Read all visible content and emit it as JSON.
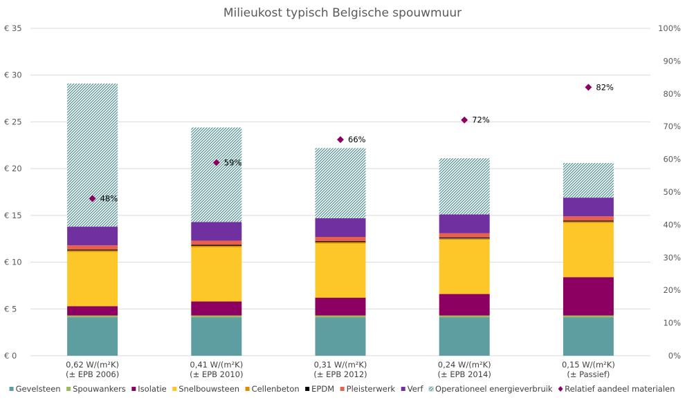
{
  "chart_data": {
    "type": "bar",
    "stacked": true,
    "title": "Milieukost typisch Belgische spouwmuur",
    "categories": [
      [
        "0,62 W/(m²K)",
        "(± EPB 2006)"
      ],
      [
        "0,41 W/(m²K)",
        "(± EPB 2010)"
      ],
      [
        "0,31 W/(m²K)",
        "(± EPB 2012)"
      ],
      [
        "0,24 W/(m²K)",
        "(± EPB 2014)"
      ],
      [
        "0,15 W/(m²K)",
        "(± Passief)"
      ]
    ],
    "y_left": {
      "min": 0,
      "max": 35,
      "step": 5,
      "tick_labels": [
        "€ 0",
        "€ 5",
        "€ 10",
        "€ 15",
        "€ 20",
        "€ 25",
        "€ 30",
        "€ 35"
      ]
    },
    "y_right": {
      "min": 0,
      "max": 100,
      "step": 10,
      "tick_labels": [
        "0%",
        "10%",
        "20%",
        "30%",
        "40%",
        "50%",
        "60%",
        "70%",
        "80%",
        "90%",
        "100%"
      ]
    },
    "grid": true,
    "legend_position": "bottom",
    "series": [
      {
        "name": "Gevelsteen",
        "color": "#5f9ea0",
        "pattern": "solid",
        "values": [
          4.1,
          4.1,
          4.1,
          4.1,
          4.1
        ]
      },
      {
        "name": "Spouwankers",
        "color": "#9bbb59",
        "pattern": "solid",
        "values": [
          0.2,
          0.2,
          0.2,
          0.2,
          0.2
        ]
      },
      {
        "name": "Isolatie",
        "color": "#8b0060",
        "pattern": "solid",
        "values": [
          1.0,
          1.5,
          1.9,
          2.3,
          4.1
        ]
      },
      {
        "name": "Snelbouwsteen",
        "color": "#fdc72a",
        "pattern": "solid",
        "values": [
          5.8,
          5.8,
          5.8,
          5.8,
          5.8
        ]
      },
      {
        "name": "Cellenbeton",
        "color": "#d99000",
        "pattern": "solid",
        "values": [
          0.15,
          0.15,
          0.15,
          0.15,
          0.15
        ]
      },
      {
        "name": "EPDM",
        "color": "#000000",
        "pattern": "solid",
        "values": [
          0.1,
          0.1,
          0.1,
          0.1,
          0.1
        ]
      },
      {
        "name": "Pleisterwerk",
        "color": "#e8604c",
        "pattern": "solid",
        "values": [
          0.45,
          0.45,
          0.45,
          0.45,
          0.45
        ]
      },
      {
        "name": "Verf",
        "color": "#7030a0",
        "pattern": "solid",
        "values": [
          2.0,
          2.0,
          2.0,
          2.0,
          2.0
        ]
      },
      {
        "name": "Operationeel energieverbruik",
        "color": "#4e8f8f",
        "pattern": "hatched",
        "values": [
          15.3,
          10.1,
          7.5,
          6.0,
          3.7
        ]
      }
    ],
    "secondary_series": {
      "name": "Relatief aandeel materialen",
      "type": "scatter",
      "marker": "diamond",
      "color": "#8b0060",
      "axis": "right",
      "values": [
        48,
        59,
        66,
        72,
        82
      ],
      "labels": [
        "48%",
        "59%",
        "66%",
        "72%",
        "82%"
      ]
    }
  }
}
